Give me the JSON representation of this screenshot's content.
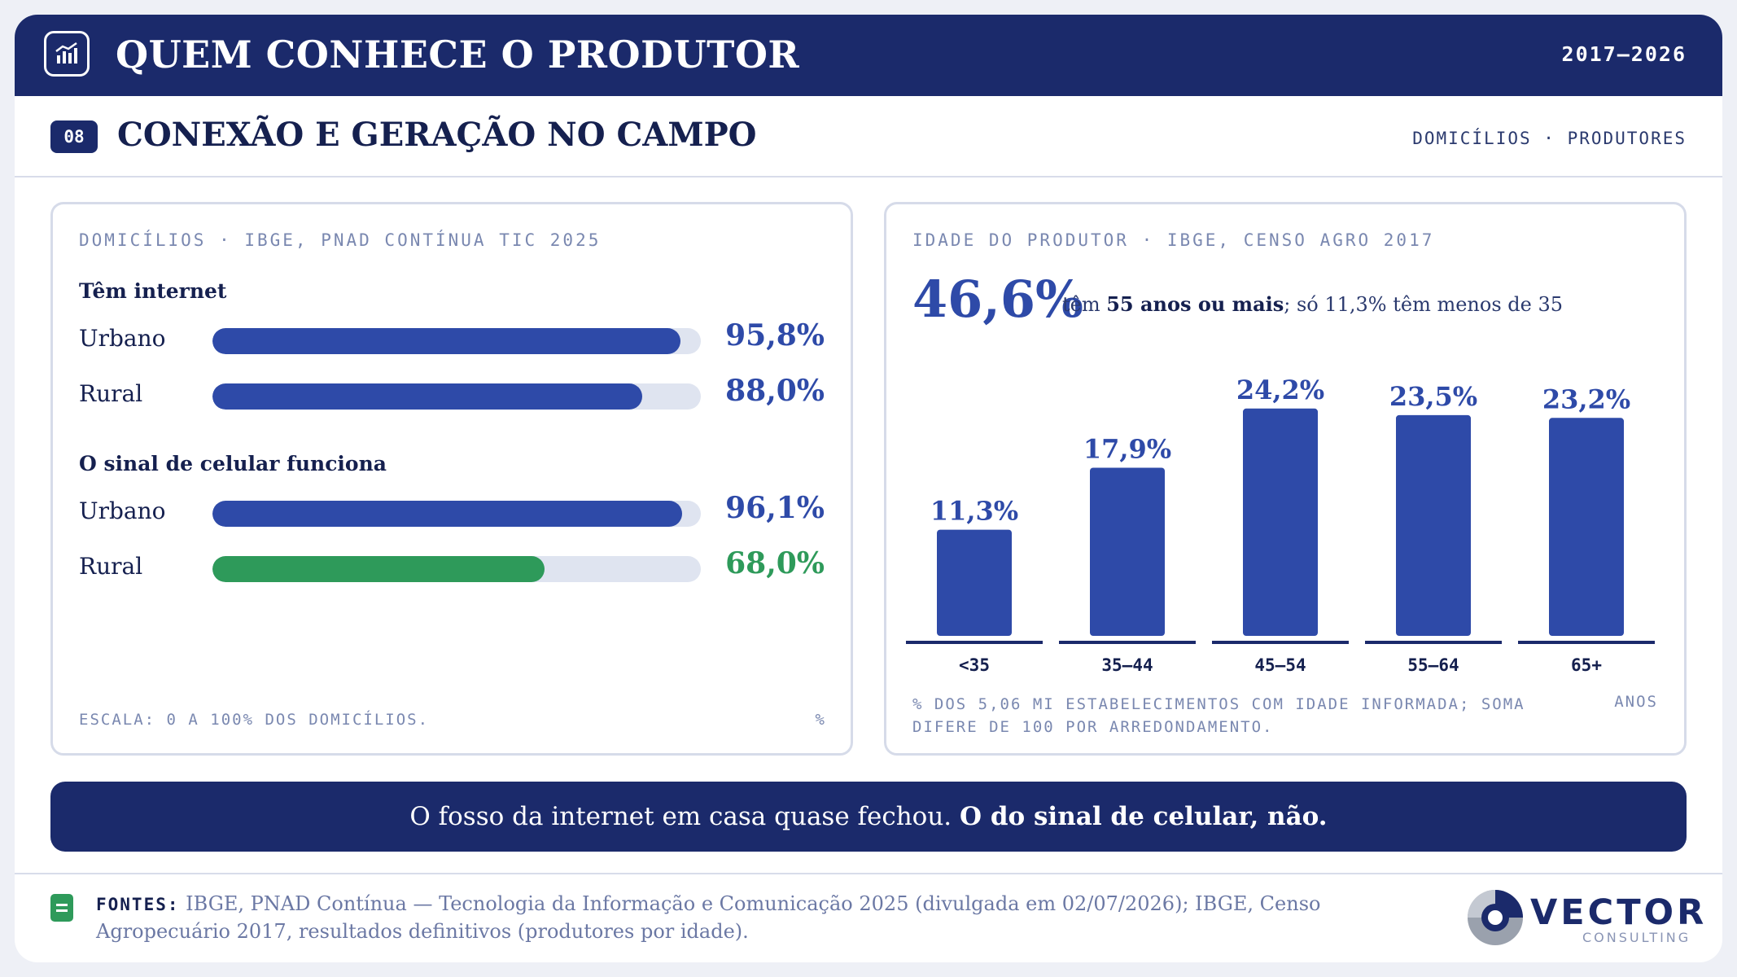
{
  "header": {
    "title": "QUEM CONHECE O PRODUTOR",
    "years": "2017–2026",
    "icon": "chart-bars-icon"
  },
  "section": {
    "number": "08",
    "title": "CONEXÃO E GERAÇÃO NO CAMPO",
    "tags": "DOMICÍLIOS · PRODUTORES"
  },
  "left_panel": {
    "heading": "DOMICÍLIOS · IBGE, PNAD CONTÍNUA TIC 2025",
    "groups": [
      {
        "title": "Têm internet",
        "rows": [
          {
            "label": "Urbano",
            "value": 95.8,
            "display": "95,8%",
            "color": "#2e4aa8"
          },
          {
            "label": "Rural",
            "value": 88.0,
            "display": "88,0%",
            "color": "#2e4aa8"
          }
        ]
      },
      {
        "title": "O sinal de celular funciona",
        "rows": [
          {
            "label": "Urbano",
            "value": 96.1,
            "display": "96,1%",
            "color": "#2e4aa8"
          },
          {
            "label": "Rural",
            "value": 68.0,
            "display": "68,0%",
            "color": "#2e9a5a"
          }
        ]
      }
    ],
    "footnote": "ESCALA: 0 A 100% DOS DOMICÍLIOS.",
    "unit": "%"
  },
  "right_panel": {
    "heading": "IDADE DO PRODUTOR · IBGE, CENSO AGRO 2017",
    "big_number": "46,6%",
    "caption_pre": "têm ",
    "caption_bold": "55 anos ou mais",
    "caption_post": "; só 11,3% têm menos de 35",
    "footnote": "% DOS 5,06 MI ESTABELECIMENTOS COM IDADE INFORMADA; SOMA DIFERE DE 100 POR ARREDONDAMENTO.",
    "unit": "ANOS"
  },
  "chart_data": [
    {
      "type": "bar",
      "orientation": "horizontal",
      "title": "Têm internet",
      "categories": [
        "Urbano",
        "Rural"
      ],
      "values": [
        95.8,
        88.0
      ],
      "ylim": [
        0,
        100
      ]
    },
    {
      "type": "bar",
      "orientation": "horizontal",
      "title": "O sinal de celular funciona",
      "categories": [
        "Urbano",
        "Rural"
      ],
      "values": [
        96.1,
        68.0
      ],
      "ylim": [
        0,
        100
      ]
    },
    {
      "type": "bar",
      "title": "IDADE DO PRODUTOR · IBGE, CENSO AGRO 2017",
      "categories": [
        "<35",
        "35–44",
        "45–54",
        "55–64",
        "65+"
      ],
      "values": [
        11.3,
        17.9,
        24.2,
        23.5,
        23.2
      ],
      "labels": [
        "11,3%",
        "17,9%",
        "24,2%",
        "23,5%",
        "23,2%"
      ],
      "ylim": [
        0,
        26
      ],
      "color": "#2e4aa8"
    }
  ],
  "banner": {
    "text": "O fosso da internet em casa quase fechou. ",
    "bold": "O do sinal de celular, não."
  },
  "footer": {
    "label": "FONTES:",
    "text": " IBGE, PNAD Contínua — Tecnologia da Informação e Comunicação 2025 (divulgada em 02/07/2026); IBGE, Censo Agropecuário 2017, resultados definitivos (produtores por idade).",
    "brand": "VECTOR",
    "brand_sub": "CONSULTING"
  }
}
